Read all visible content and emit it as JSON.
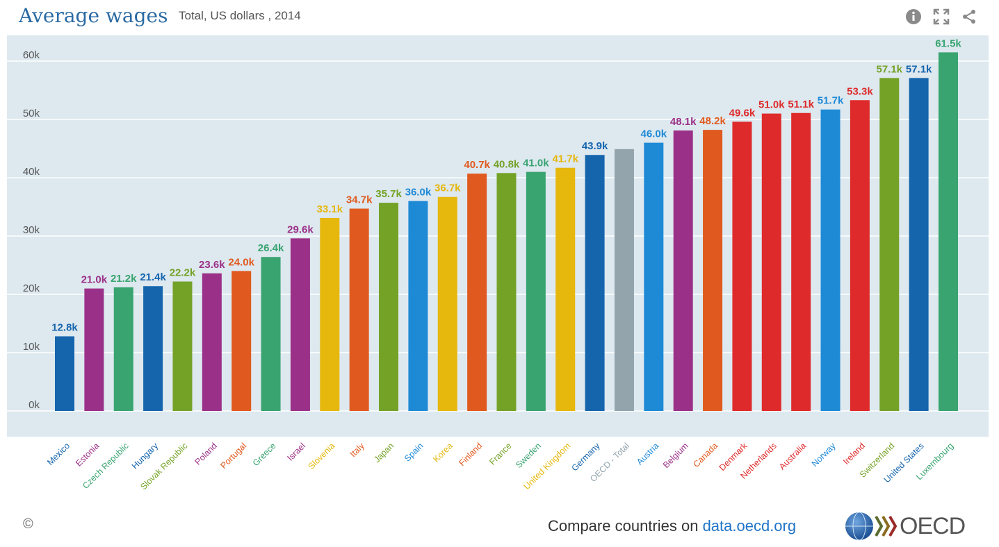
{
  "header": {
    "title": "Average wages",
    "subtitle": "Total, US dollars , 2014"
  },
  "tools": [
    {
      "name": "info-icon"
    },
    {
      "name": "fullscreen-icon"
    },
    {
      "name": "share-icon"
    }
  ],
  "colors": {
    "plot_background": "#dde8ef",
    "gridline": "#ffffff",
    "tick_label": "#555555"
  },
  "chart_data": {
    "type": "bar",
    "title": "Average wages",
    "subtitle": "Total, US dollars , 2014",
    "ylim": [
      0,
      65000
    ],
    "yticks": [
      0,
      10000,
      20000,
      30000,
      40000,
      50000,
      60000
    ],
    "ytick_labels": [
      "0k",
      "10k",
      "20k",
      "30k",
      "40k",
      "50k",
      "60k"
    ],
    "grid": true,
    "categories": [
      "Mexico",
      "Estonia",
      "Czech Republic",
      "Hungary",
      "Slovak Republic",
      "Poland",
      "Portugal",
      "Greece",
      "Israel",
      "Slovenia",
      "Italy",
      "Japan",
      "Spain",
      "Korea",
      "Finland",
      "France",
      "Sweden",
      "United Kingdom",
      "Germany",
      "OECD - Total",
      "Austria",
      "Belgium",
      "Canada",
      "Denmark",
      "Netherlands",
      "Australia",
      "Norway",
      "Ireland",
      "Switzerland",
      "United States",
      "Luxembourg"
    ],
    "values": [
      12800,
      21000,
      21200,
      21400,
      22200,
      23600,
      24000,
      26400,
      29600,
      33100,
      34700,
      35700,
      36000,
      36700,
      40700,
      40800,
      41000,
      41700,
      43900,
      44900,
      46000,
      48100,
      48200,
      49600,
      51000,
      51100,
      51700,
      53300,
      57100,
      57100,
      61500
    ],
    "data_labels": [
      "12.8k",
      "21.0k",
      "21.2k",
      "21.4k",
      "22.2k",
      "23.6k",
      "24.0k",
      "26.4k",
      "29.6k",
      "33.1k",
      "34.7k",
      "35.7k",
      "36.0k",
      "36.7k",
      "40.7k",
      "40.8k",
      "41.0k",
      "41.7k",
      "43.9k",
      "",
      "46.0k",
      "48.1k",
      "48.2k",
      "49.6k",
      "51.0k",
      "51.1k",
      "51.7k",
      "53.3k",
      "57.1k",
      "57.1k",
      "61.5k"
    ],
    "bar_colors": [
      "#1565ad",
      "#9b3088",
      "#39a470",
      "#1565ad",
      "#74a227",
      "#9b3088",
      "#e05a1f",
      "#39a470",
      "#9b3088",
      "#e6b70d",
      "#e05a1f",
      "#74a227",
      "#1e8ad6",
      "#e6b70d",
      "#e05a1f",
      "#74a227",
      "#39a470",
      "#e6b70d",
      "#1565ad",
      "#93a4ad",
      "#1e8ad6",
      "#9b3088",
      "#e05a1f",
      "#de2a2a",
      "#de2a2a",
      "#de2a2a",
      "#1e8ad6",
      "#de2a2a",
      "#74a227",
      "#1565ad",
      "#39a470"
    ]
  },
  "footer": {
    "copyright": "©",
    "compare_text": "Compare countries on ",
    "link_text": "data.oecd.org",
    "logo_text": "OECD"
  }
}
